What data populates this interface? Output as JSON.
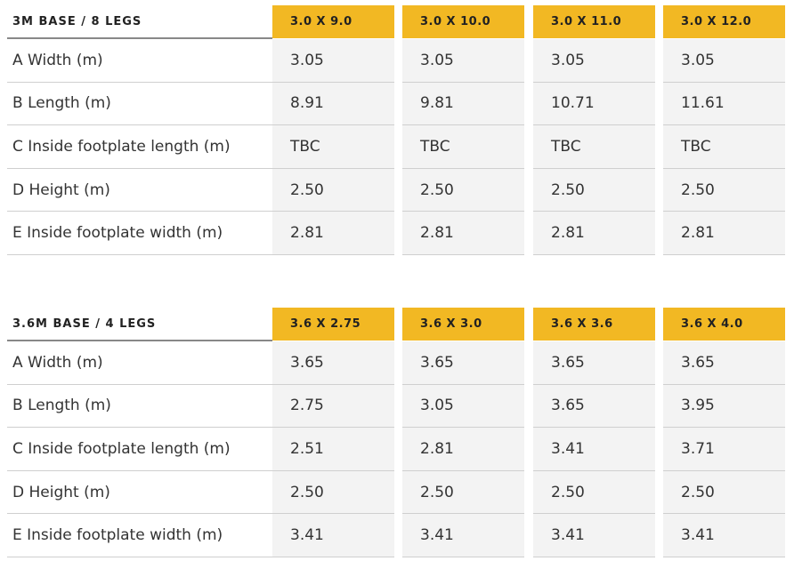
{
  "tables": [
    {
      "title": "3M BASE / 8 LEGS",
      "columns": [
        "3.0 X 9.0",
        "3.0 X 10.0",
        "3.0 X 11.0",
        "3.0 X 12.0"
      ],
      "rows": [
        [
          "A Width (m)",
          "3.05",
          "3.05",
          "3.05",
          "3.05"
        ],
        [
          "B Length (m)",
          "8.91",
          "9.81",
          "10.71",
          "11.61"
        ],
        [
          "C Inside footplate length (m)",
          "TBC",
          "TBC",
          "TBC",
          "TBC"
        ],
        [
          "D Height (m)",
          "2.50",
          "2.50",
          "2.50",
          "2.50"
        ],
        [
          "E Inside footplate width (m)",
          "2.81",
          "2.81",
          "2.81",
          "2.81"
        ]
      ]
    },
    {
      "title": "3.6M BASE / 4 LEGS",
      "columns": [
        "3.6 X 2.75",
        "3.6 X 3.0",
        "3.6 X 3.6",
        "3.6 X 4.0"
      ],
      "rows": [
        [
          "A Width (m)",
          "3.65",
          "3.65",
          "3.65",
          "3.65"
        ],
        [
          "B Length (m)",
          "2.75",
          "3.05",
          "3.65",
          "3.95"
        ],
        [
          "C Inside footplate length (m)",
          "2.51",
          "2.81",
          "3.41",
          "3.71"
        ],
        [
          "D Height (m)",
          "2.50",
          "2.50",
          "2.50",
          "2.50"
        ],
        [
          "E Inside footplate width (m)",
          "3.41",
          "3.41",
          "3.41",
          "3.41"
        ]
      ]
    }
  ]
}
